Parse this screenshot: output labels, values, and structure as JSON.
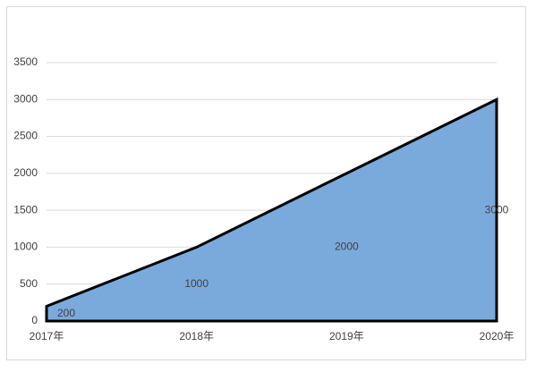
{
  "chart_data": {
    "type": "area",
    "categories": [
      "2017年",
      "2018年",
      "2019年",
      "2020年"
    ],
    "series": [
      {
        "values": [
          200,
          1000,
          2000,
          3000
        ],
        "color": "#7aaadc"
      }
    ],
    "ylim": [
      0,
      3500
    ],
    "yticks": [
      0,
      500,
      1000,
      1500,
      2000,
      2500,
      3000,
      3500
    ],
    "grid": true
  }
}
